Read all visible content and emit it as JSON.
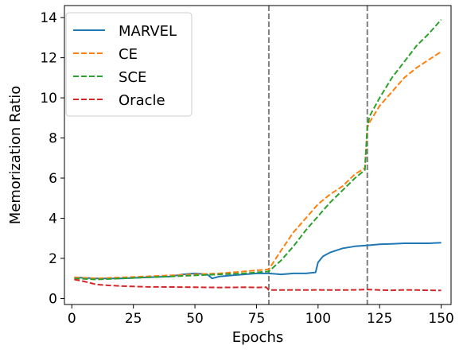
{
  "chart_data": {
    "type": "line",
    "title": "",
    "xlabel": "Epochs",
    "ylabel": "Memorization Ratio",
    "xlim": [
      -3,
      154
    ],
    "ylim": [
      -0.3,
      14.6
    ],
    "xticks": [
      0,
      25,
      50,
      75,
      100,
      125,
      150
    ],
    "yticks": [
      0,
      2,
      4,
      6,
      8,
      10,
      12,
      14
    ],
    "vlines": [
      80,
      120
    ],
    "grid": false,
    "legend_position": "top-left",
    "series": [
      {
        "name": "MARVEL",
        "color": "#1f77b4",
        "style": "solid",
        "x": [
          1,
          10,
          20,
          30,
          40,
          45,
          50,
          55,
          57,
          60,
          65,
          70,
          75,
          80,
          85,
          90,
          95,
          99,
          100,
          102,
          105,
          110,
          115,
          120,
          125,
          130,
          135,
          140,
          145,
          150
        ],
        "y": [
          1.05,
          1.0,
          1.0,
          1.05,
          1.1,
          1.2,
          1.25,
          1.2,
          1.0,
          1.1,
          1.15,
          1.2,
          1.25,
          1.25,
          1.2,
          1.25,
          1.25,
          1.3,
          1.8,
          2.1,
          2.3,
          2.5,
          2.6,
          2.65,
          2.7,
          2.72,
          2.75,
          2.75,
          2.75,
          2.78
        ]
      },
      {
        "name": "CE",
        "color": "#ff7f0e",
        "style": "dashed",
        "x": [
          1,
          10,
          20,
          30,
          40,
          50,
          60,
          70,
          75,
          80,
          85,
          90,
          95,
          100,
          105,
          110,
          115,
          119,
          120,
          121,
          125,
          130,
          135,
          140,
          145,
          150
        ],
        "y": [
          1.05,
          1.0,
          1.05,
          1.1,
          1.15,
          1.2,
          1.25,
          1.35,
          1.4,
          1.45,
          2.4,
          3.3,
          4.0,
          4.7,
          5.2,
          5.6,
          6.2,
          6.5,
          8.5,
          8.8,
          9.6,
          10.3,
          11.0,
          11.5,
          11.9,
          12.3
        ]
      },
      {
        "name": "SCE",
        "color": "#2ca02c",
        "style": "dashed",
        "x": [
          1,
          10,
          20,
          30,
          40,
          50,
          60,
          70,
          75,
          80,
          85,
          90,
          95,
          100,
          105,
          110,
          115,
          119,
          120,
          121,
          125,
          130,
          135,
          140,
          145,
          150
        ],
        "y": [
          1.0,
          0.95,
          1.0,
          1.05,
          1.1,
          1.15,
          1.2,
          1.25,
          1.3,
          1.35,
          1.9,
          2.6,
          3.4,
          4.1,
          4.8,
          5.4,
          6.0,
          6.4,
          8.6,
          9.1,
          10.0,
          11.0,
          11.8,
          12.6,
          13.2,
          13.9
        ]
      },
      {
        "name": "Oracle",
        "color": "#d62728",
        "style": "dashed",
        "x": [
          1,
          5,
          10,
          15,
          20,
          25,
          30,
          40,
          50,
          60,
          70,
          75,
          79,
          80,
          85,
          90,
          95,
          100,
          105,
          110,
          115,
          120,
          125,
          130,
          135,
          140,
          145,
          150
        ],
        "y": [
          0.95,
          0.85,
          0.7,
          0.65,
          0.62,
          0.6,
          0.58,
          0.57,
          0.56,
          0.55,
          0.56,
          0.55,
          0.56,
          0.42,
          0.42,
          0.43,
          0.42,
          0.43,
          0.42,
          0.42,
          0.43,
          0.45,
          0.42,
          0.41,
          0.43,
          0.42,
          0.41,
          0.4
        ]
      }
    ]
  }
}
